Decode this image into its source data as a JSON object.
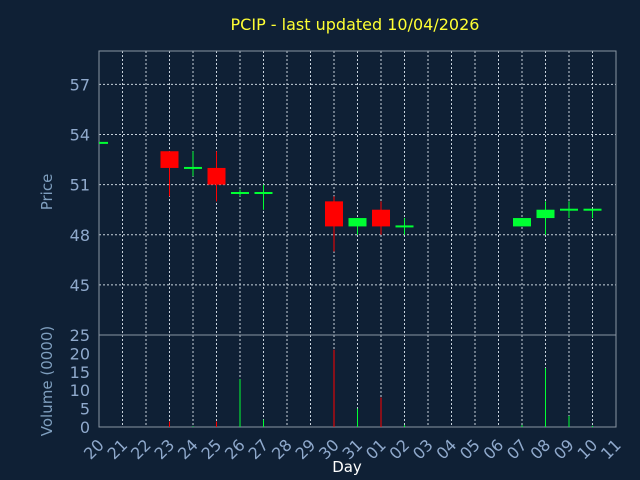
{
  "chart_data": {
    "type": "candlestick",
    "title": "PCIP - last updated 10/04/2026",
    "xlabel": "Day",
    "price_panel": {
      "ylabel": "Price",
      "ylim": [
        42,
        59
      ],
      "yticks": [
        45,
        48,
        51,
        54,
        57
      ],
      "grid": true
    },
    "volume_panel": {
      "ylabel": "Volume (0000)",
      "ylim": [
        0,
        25
      ],
      "yticks": [
        0,
        5,
        10,
        15,
        20,
        25
      ]
    },
    "x_tick_labels": [
      "20",
      "21",
      "22",
      "23",
      "24",
      "25",
      "26",
      "27",
      "28",
      "29",
      "30",
      "31",
      "01",
      "02",
      "03",
      "04",
      "05",
      "06",
      "07",
      "08",
      "09",
      "10",
      "11"
    ],
    "candles": [
      {
        "day": "20",
        "open": 53.5,
        "high": 53.5,
        "low": 53.5,
        "close": 53.5,
        "volume": 0
      },
      {
        "day": "23",
        "open": 53.0,
        "high": 53.0,
        "low": 50.3,
        "close": 52.0,
        "volume": 1.5
      },
      {
        "day": "24",
        "open": 52.0,
        "high": 53.0,
        "low": 51.5,
        "close": 52.0,
        "volume": 0.2
      },
      {
        "day": "25",
        "open": 52.0,
        "high": 53.0,
        "low": 50.0,
        "close": 51.0,
        "volume": 1.5
      },
      {
        "day": "26",
        "open": 50.5,
        "high": 50.7,
        "low": 50.3,
        "close": 50.5,
        "volume": 13
      },
      {
        "day": "27",
        "open": 50.5,
        "high": 51.0,
        "low": 49.5,
        "close": 50.5,
        "volume": 2
      },
      {
        "day": "30",
        "open": 50.0,
        "high": 50.3,
        "low": 47.0,
        "close": 48.5,
        "volume": 21
      },
      {
        "day": "31",
        "open": 48.5,
        "high": 49.0,
        "low": 48.0,
        "close": 49.0,
        "volume": 5
      },
      {
        "day": "01",
        "open": 49.5,
        "high": 50.0,
        "low": 48.0,
        "close": 48.5,
        "volume": 8
      },
      {
        "day": "02",
        "open": 48.5,
        "high": 49.0,
        "low": 48.0,
        "close": 48.5,
        "volume": 0.5
      },
      {
        "day": "07",
        "open": 48.5,
        "high": 49.0,
        "low": 48.5,
        "close": 49.0,
        "volume": 0.5
      },
      {
        "day": "08",
        "open": 49.0,
        "high": 50.0,
        "low": 48.0,
        "close": 49.5,
        "volume": 16
      },
      {
        "day": "09",
        "open": 49.5,
        "high": 50.0,
        "low": 49.0,
        "close": 49.5,
        "volume": 3
      },
      {
        "day": "10",
        "open": 49.5,
        "high": 49.5,
        "low": 49.0,
        "close": 49.5,
        "volume": 0.3
      }
    ],
    "colors": {
      "background": "#0f2035",
      "up": "#00ff33",
      "down": "#ff0000",
      "title": "#ffff33",
      "axis_text": "#8fa9cc",
      "grid": "#c8d2dc"
    }
  }
}
